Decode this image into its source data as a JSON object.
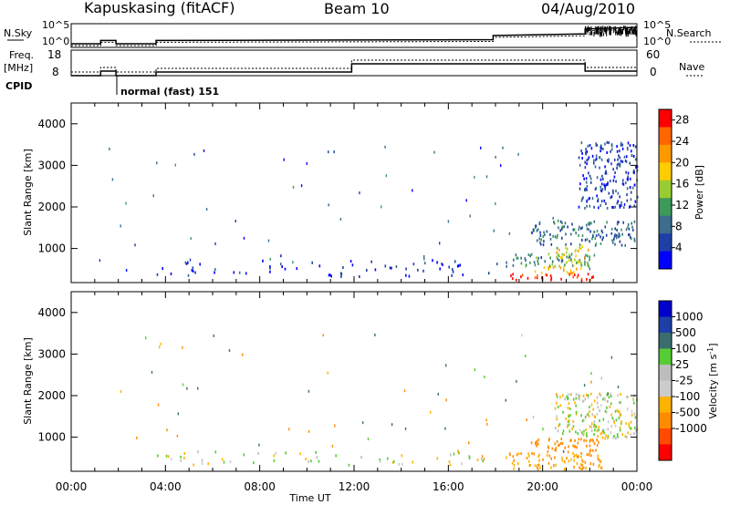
{
  "header": {
    "station": "Kapuskasing (fitACF)",
    "beam": "Beam 10",
    "date": "04/Aug/2010"
  },
  "panels": {
    "nsky_label": "N.Sky",
    "nsearch_label": "N.Search",
    "nsky_ticks": [
      "10^5",
      "10^0"
    ],
    "nsearch_ticks": [
      "10^5",
      "10^0"
    ],
    "freq_label_1": "Freq.",
    "freq_label_2": "[MHz]",
    "freq_ticks": [
      "18",
      "8"
    ],
    "nave_label": "Nave",
    "nave_ticks": [
      "60",
      "0"
    ],
    "cpid_label": "CPID",
    "cpid_value": "normal (fast) 151"
  },
  "colors": {
    "power_scale": [
      "#0000ff",
      "#1e3fa8",
      "#3a6e8c",
      "#3c9a5a",
      "#99cc33",
      "#ffcc00",
      "#ff9900",
      "#ff6600",
      "#ff0000"
    ],
    "velocity_scale": [
      "#ff0000",
      "#ff4a00",
      "#ff8c00",
      "#ffb300",
      "#cccccc",
      "#bdbdbd",
      "#55cc33",
      "#3a6e6e",
      "#1e3fa8",
      "#0000cc"
    ]
  },
  "chart_data": [
    {
      "type": "line",
      "panel": "N.Sky / N.Search",
      "x": [
        0,
        1.25,
        1.25,
        1.9,
        1.9,
        3.6,
        3.6,
        17.9,
        17.9,
        21.8,
        21.8,
        24
      ],
      "series": [
        {
          "name": "N.Sky",
          "values": [
            0,
            0,
            0.2,
            0.2,
            0,
            0,
            0.2,
            0.25,
            0.5,
            0.6,
            0.9,
            1.0
          ]
        }
      ]
    },
    {
      "type": "line",
      "panel": "Freq. / Nave",
      "x": [
        0,
        1.25,
        1.25,
        1.9,
        1.9,
        3.6,
        3.6,
        11.9,
        11.9,
        21.8,
        21.8,
        24
      ],
      "series": [
        {
          "name": "Freq. [MHz]",
          "values": [
            8,
            8,
            10.5,
            10.5,
            8,
            8,
            10,
            10,
            14.5,
            14.5,
            10.5,
            10.5
          ]
        }
      ]
    },
    {
      "type": "heatmap",
      "title": "",
      "xlabel": "Time UT",
      "ylabel": "Slant Range [km]",
      "xlim": [
        0,
        24
      ],
      "ylim": [
        180,
        4500
      ],
      "x_ticks": [
        "00:00",
        "04:00",
        "08:00",
        "12:00",
        "16:00",
        "20:00",
        "00:00"
      ],
      "y_ticks": [
        1000,
        2000,
        3000,
        4000
      ],
      "colorbar_label": "Power [dB]",
      "colorbar_ticks": [
        4,
        8,
        12,
        16,
        20,
        24,
        28
      ],
      "colorbar_range": [
        0,
        30
      ],
      "regions": [
        {
          "t0": 18.6,
          "t1": 22.2,
          "r0": 250,
          "r1": 420,
          "value": 29
        },
        {
          "t0": 19.6,
          "t1": 21.6,
          "r0": 420,
          "r1": 600,
          "value": 20
        },
        {
          "t0": 18.4,
          "t1": 22.2,
          "r0": 600,
          "r1": 900,
          "value": 10
        },
        {
          "t0": 20.5,
          "t1": 22.0,
          "r0": 600,
          "r1": 1100,
          "value": 17
        },
        {
          "t0": 19.5,
          "t1": 24.0,
          "r0": 1100,
          "r1": 1700,
          "value": 8
        },
        {
          "t0": 21.5,
          "t1": 24.0,
          "r0": 2000,
          "r1": 3600,
          "value": 5
        },
        {
          "t0": 3.6,
          "t1": 18.0,
          "r0": 350,
          "r1": 750,
          "value": 4
        }
      ]
    },
    {
      "type": "heatmap",
      "title": "",
      "xlabel": "Time UT",
      "ylabel": "Slant Range [km]",
      "xlim": [
        0,
        24
      ],
      "ylim": [
        180,
        4500
      ],
      "x_ticks": [
        "00:00",
        "04:00",
        "08:00",
        "12:00",
        "16:00",
        "20:00",
        "00:00"
      ],
      "y_ticks": [
        1000,
        2000,
        3000,
        4000
      ],
      "colorbar_label": "Velocity [m s^-1]",
      "colorbar_ticks": [
        "1000",
        "500",
        "100",
        "25",
        "-25",
        "-100",
        "-500",
        "-1000"
      ],
      "regions": [
        {
          "t0": 18.4,
          "t1": 22.5,
          "r0": 250,
          "r1": 650,
          "value": -100
        },
        {
          "t0": 19.4,
          "t1": 22.4,
          "r0": 650,
          "r1": 1000,
          "value": -300
        },
        {
          "t0": 20.5,
          "t1": 24.0,
          "r0": 1000,
          "r1": 2100,
          "value": 0
        },
        {
          "t0": 3.6,
          "t1": 18.0,
          "r0": 350,
          "r1": 700,
          "value": 0
        }
      ]
    }
  ]
}
